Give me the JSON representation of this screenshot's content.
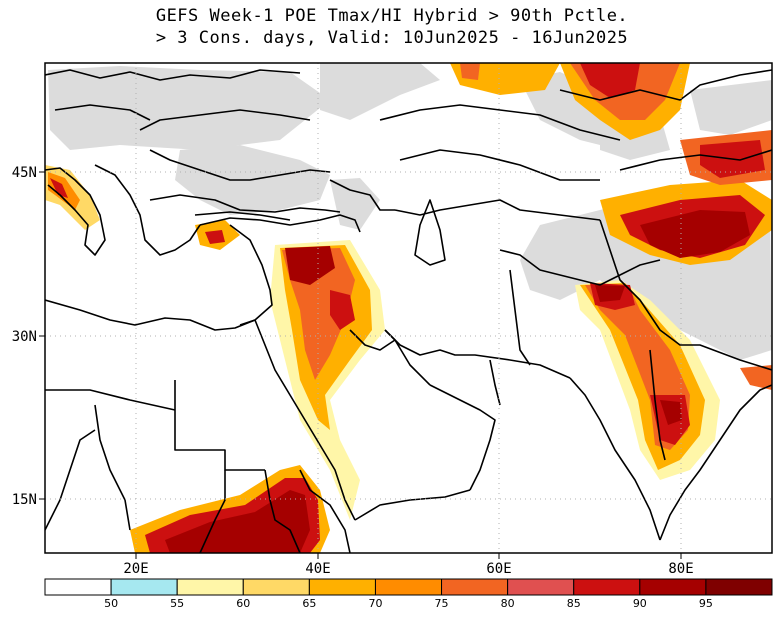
{
  "title": {
    "line1": "GEFS Week-1 POE Tmax/HI Hybrid > 90th Pctle.",
    "line2": "> 3 Cons. days, Valid: 10Jun2025 - 16Jun2025"
  },
  "chart_data": {
    "type": "heatmap",
    "projection": "cylindrical-equidistant",
    "lon_range": [
      12,
      92
    ],
    "lat_range": [
      10,
      55
    ],
    "x_ticks": [
      {
        "lon": 20,
        "label": "20E"
      },
      {
        "lon": 40,
        "label": "40E"
      },
      {
        "lon": 60,
        "label": "60E"
      },
      {
        "lon": 80,
        "label": "80E"
      }
    ],
    "y_ticks": [
      {
        "lat": 45,
        "label": "45N"
      },
      {
        "lat": 30,
        "label": "30N"
      },
      {
        "lat": 15,
        "label": "15N"
      }
    ],
    "grid": true,
    "colorbar": {
      "levels": [
        "50",
        "55",
        "60",
        "65",
        "70",
        "75",
        "80",
        "85",
        "90",
        "95"
      ],
      "colors": [
        "#ffffff",
        "#a6e8f0",
        "#fff6a8",
        "#ffd966",
        "#ffb000",
        "#ff8c00",
        "#f26522",
        "#e05050",
        "#cc1010",
        "#a50000",
        "#7f0000"
      ]
    },
    "colors": {
      "land_masked": "#dcdcdc",
      "coast": "#000000",
      "background": "#ffffff"
    }
  }
}
